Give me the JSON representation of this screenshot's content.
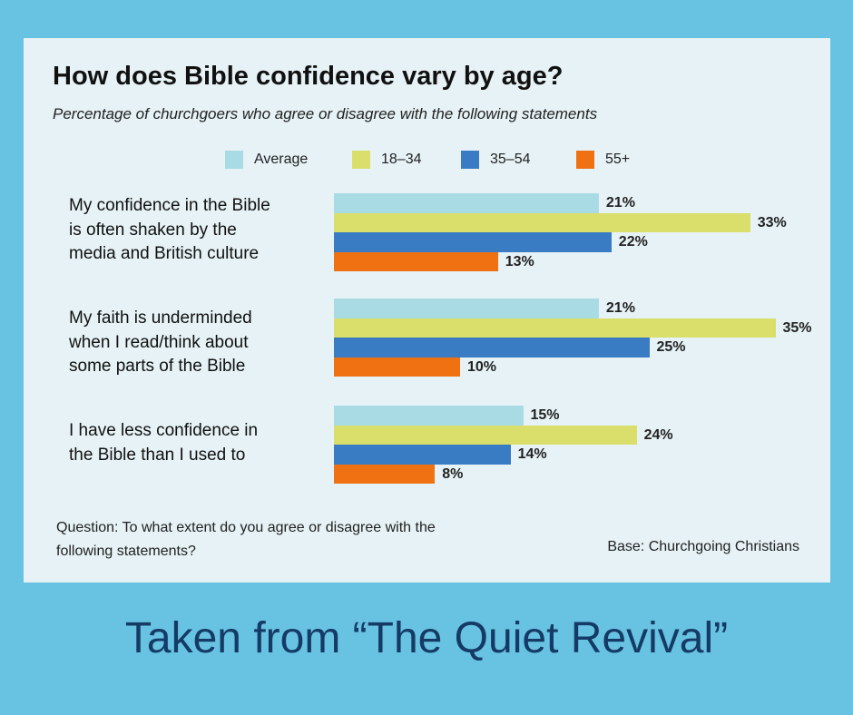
{
  "chart_data": {
    "type": "bar",
    "orientation": "horizontal",
    "title": "How does Bible confidence vary by age?",
    "subtitle": "Percentage of churchgoers who agree or disagree with the following statements",
    "categories": [
      [
        "My confidence in the Bible",
        "is often shaken by the",
        "media and British culture"
      ],
      [
        "My faith is underminded",
        "when I read/think about",
        "some parts of the Bible"
      ],
      [
        "I have less confidence in",
        "the Bible than I used to"
      ]
    ],
    "series": [
      {
        "name": "Average",
        "color": "#a9dbe4",
        "values": [
          21,
          21,
          15
        ]
      },
      {
        "name": "18–34",
        "color": "#d9df6a",
        "values": [
          33,
          35,
          24
        ]
      },
      {
        "name": "35–54",
        "color": "#3a7cc4",
        "values": [
          22,
          25,
          14
        ]
      },
      {
        "name": "55+",
        "color": "#ef7112",
        "values": [
          13,
          10,
          8
        ]
      }
    ],
    "value_suffix": "%",
    "xlim": [
      0,
      35
    ],
    "legend_position": "top",
    "grid": false
  },
  "footer": {
    "question": "Question: To what extent do you agree or disagree with the following statements?",
    "base": "Base: Churchgoing Christians"
  },
  "caption": "Taken from “The Quiet Revival”",
  "colors": {
    "background": "#68c3e3",
    "card": "#e6f2f6",
    "caption": "#153a66"
  }
}
